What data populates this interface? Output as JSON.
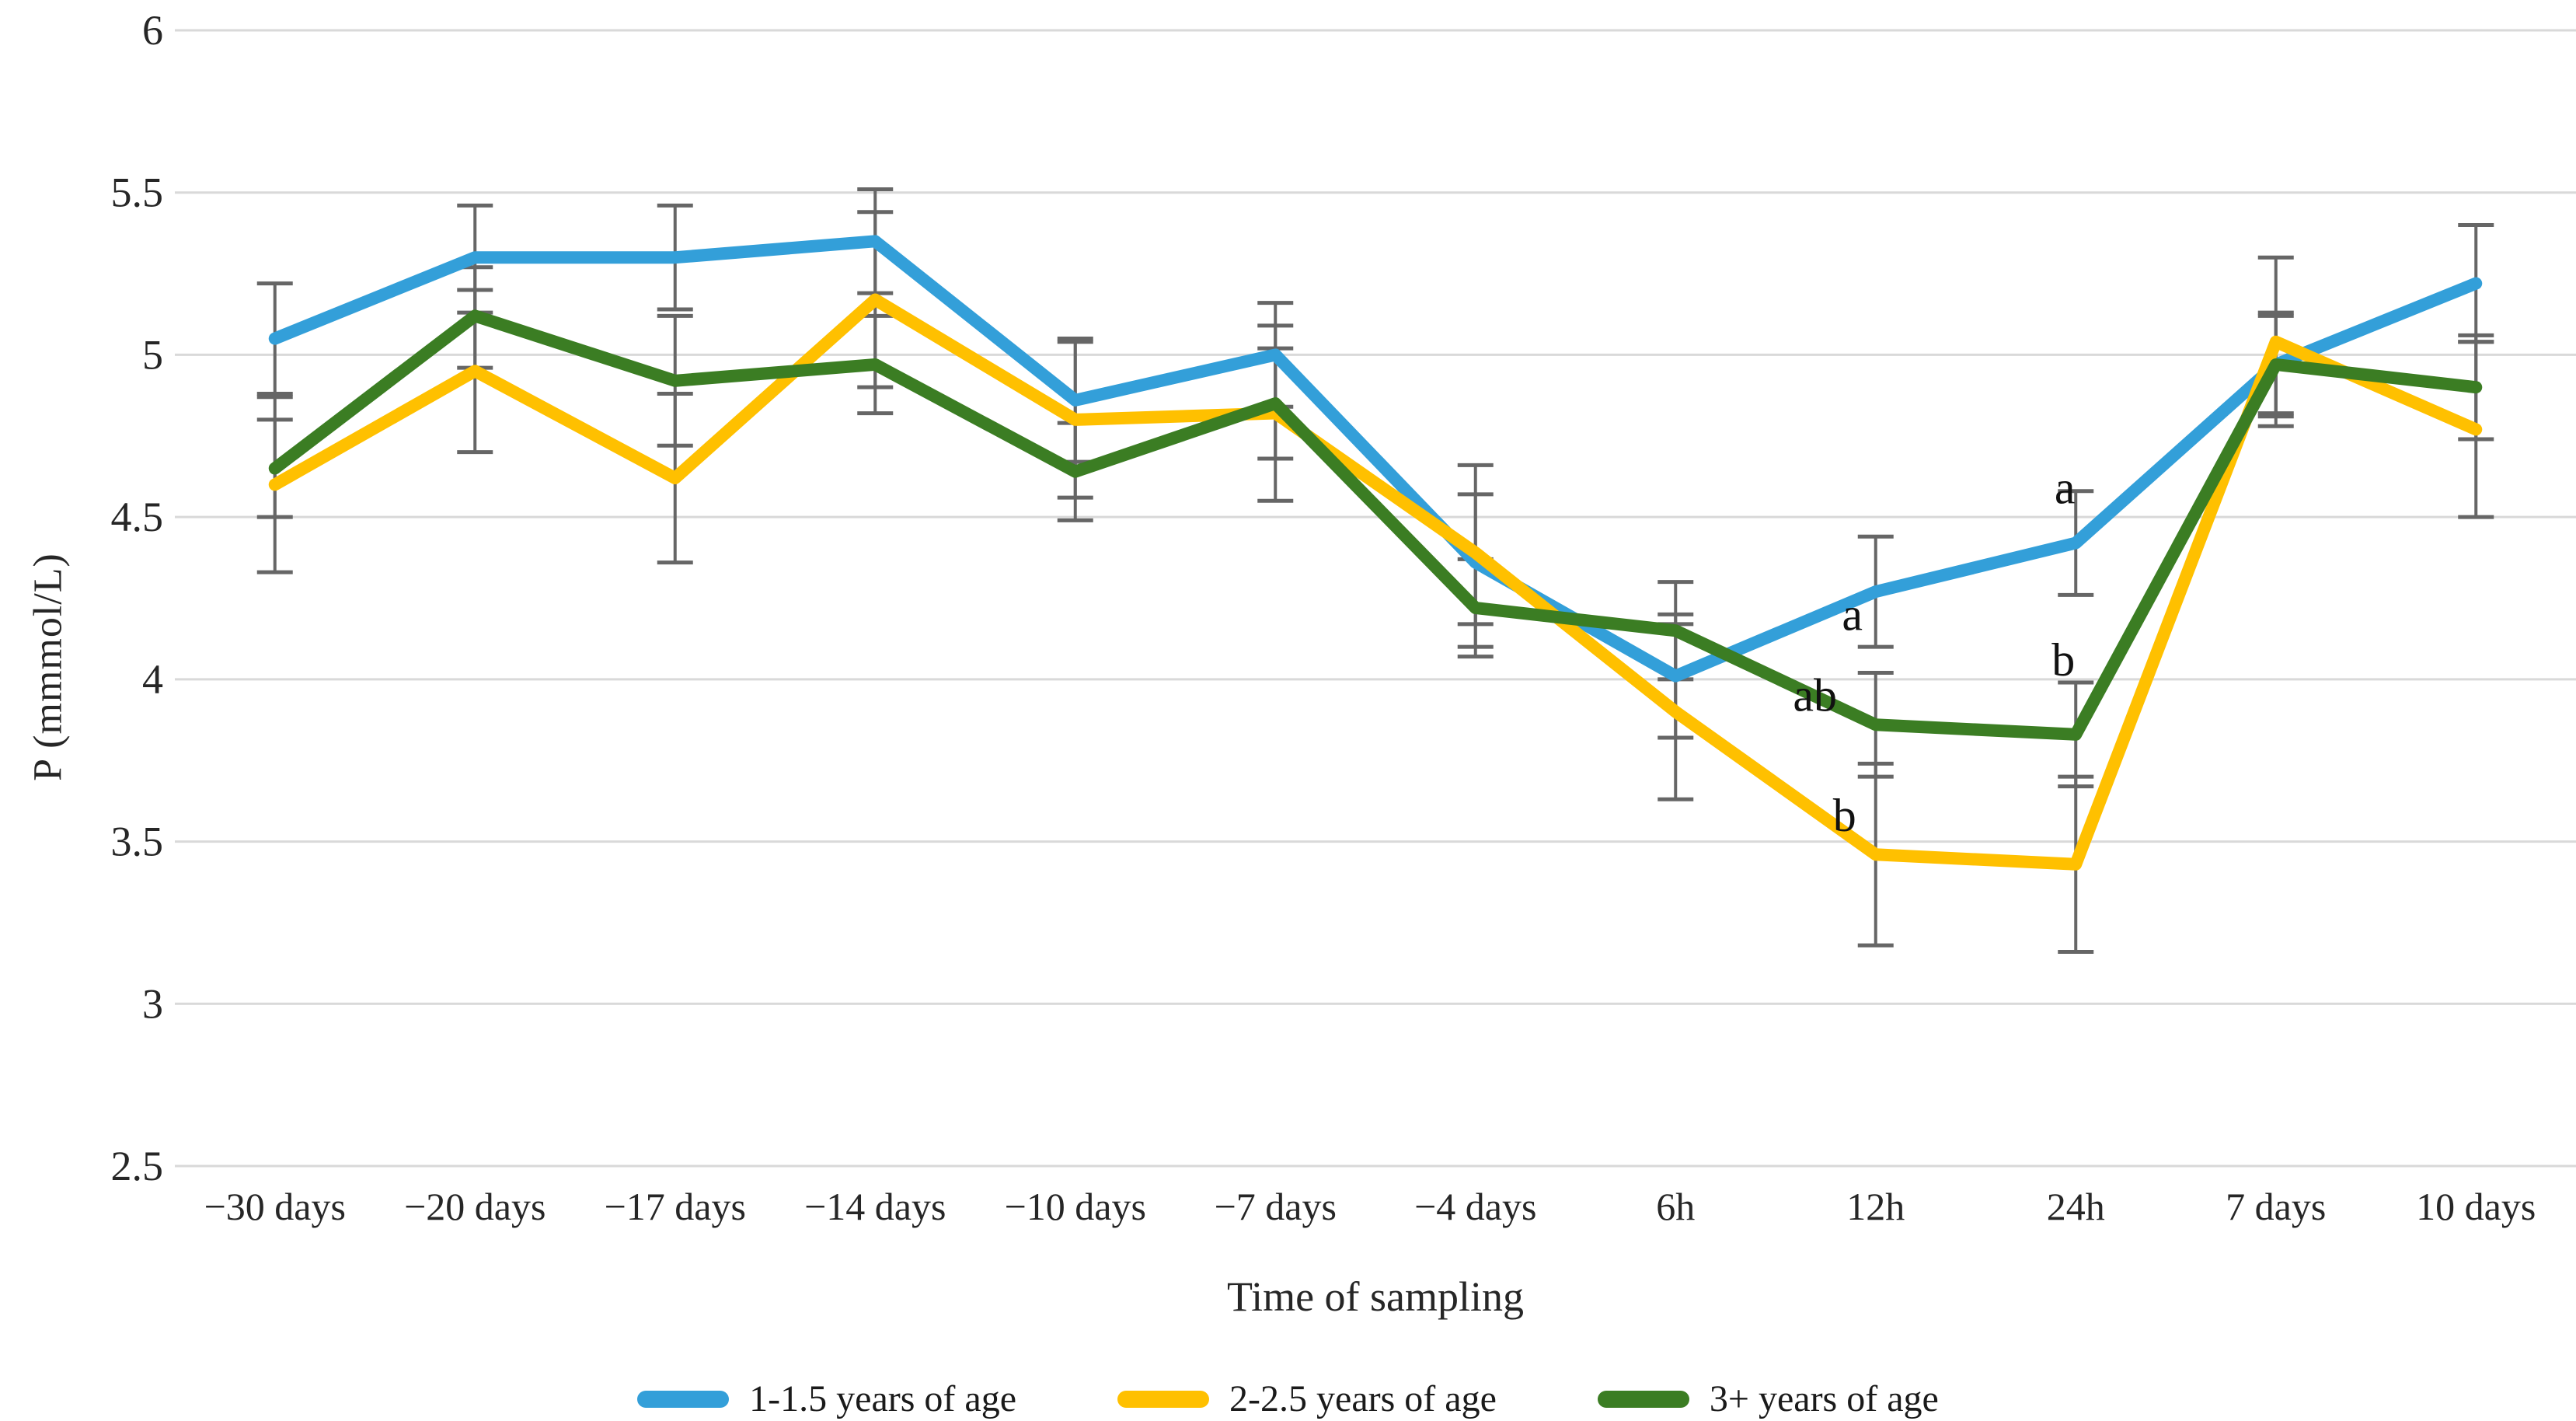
{
  "chart_data": {
    "type": "line",
    "title": "",
    "xlabel": "Time of sampling",
    "ylabel": "P (mmmol/L)",
    "ylim": [
      2.5,
      6
    ],
    "grid": "horizontal",
    "legend_position": "bottom",
    "gridline_color": "#d9d9d9",
    "errorbar_color": "#666666",
    "text_color": "#262626",
    "yticks": [
      "6",
      "5.5",
      "5",
      "4.5",
      "4",
      "3.5",
      "3",
      "2.5"
    ],
    "ytick_values": [
      6,
      5.5,
      5,
      4.5,
      4,
      3.5,
      3,
      2.5
    ],
    "categories": [
      "−30 days",
      "−20 days",
      "−17 days",
      "−14 days",
      "−10 days",
      "−7 days",
      "−4 days",
      "6h",
      "12h",
      "24h",
      "7 days",
      "10 days"
    ],
    "series": [
      {
        "name": "1-1.5 years of age",
        "color": "#339fd9",
        "values": [
          5.05,
          5.3,
          5.3,
          5.35,
          4.86,
          5.0,
          4.36,
          4.01,
          4.27,
          4.42,
          4.97,
          5.22
        ],
        "err_lo": [
          4.88,
          5.13,
          5.14,
          5.19,
          4.67,
          4.84,
          4.17,
          3.82,
          4.1,
          4.26,
          4.81,
          5.04
        ],
        "err_hi": [
          5.22,
          5.46,
          5.46,
          5.51,
          5.05,
          5.16,
          4.57,
          4.2,
          4.44,
          4.58,
          5.13,
          5.4
        ]
      },
      {
        "name": "2-2.5 years of age",
        "color": "#ffc000",
        "values": [
          4.6,
          4.95,
          4.62,
          5.17,
          4.8,
          4.82,
          4.39,
          3.9,
          3.46,
          3.43,
          5.04,
          4.77
        ],
        "err_lo": [
          4.33,
          4.7,
          4.36,
          4.9,
          4.56,
          4.55,
          4.1,
          3.63,
          3.18,
          3.16,
          4.78,
          4.5
        ],
        "err_hi": [
          4.87,
          5.2,
          4.88,
          5.44,
          5.04,
          5.09,
          4.66,
          4.17,
          3.74,
          3.7,
          5.3,
          5.04
        ]
      },
      {
        "name": "3+ years of age",
        "color": "#3b7d23",
        "values": [
          4.65,
          5.12,
          4.92,
          4.97,
          4.64,
          4.85,
          4.22,
          4.15,
          3.86,
          3.83,
          4.97,
          4.9
        ],
        "err_lo": [
          4.5,
          4.96,
          4.72,
          4.82,
          4.49,
          4.68,
          4.07,
          4.0,
          3.7,
          3.67,
          4.82,
          4.74
        ],
        "err_hi": [
          4.8,
          5.27,
          5.12,
          5.12,
          4.79,
          5.02,
          4.37,
          4.3,
          4.02,
          3.99,
          5.12,
          5.06
        ]
      }
    ],
    "annotations": [
      {
        "text": "a",
        "category_index": 8,
        "value": 4.2,
        "dx": -30
      },
      {
        "text": "ab",
        "category_index": 8,
        "value": 3.95,
        "dx": -78
      },
      {
        "text": "b",
        "category_index": 8,
        "value": 3.58,
        "dx": -40
      },
      {
        "text": "a",
        "category_index": 9,
        "value": 4.59,
        "dx": -14
      },
      {
        "text": "b",
        "category_index": 9,
        "value": 4.06,
        "dx": -16
      }
    ]
  }
}
